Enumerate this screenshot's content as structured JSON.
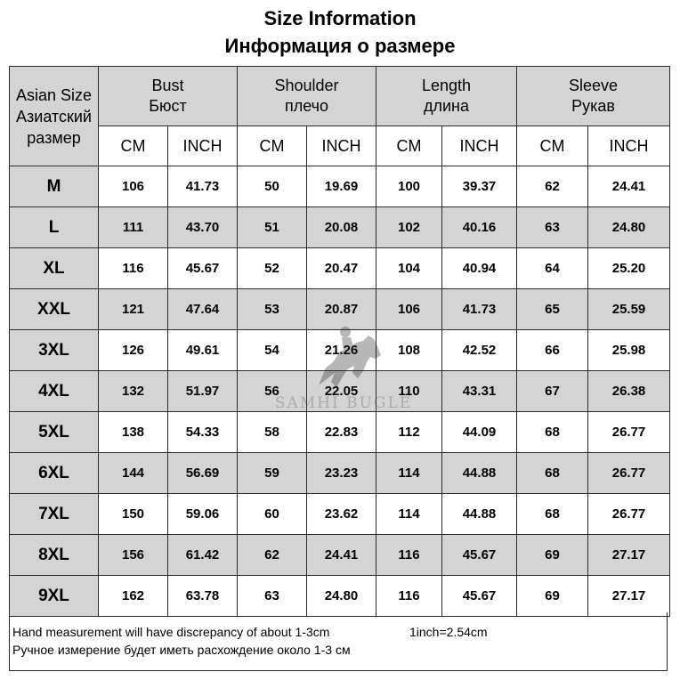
{
  "title": {
    "en": "Size Information",
    "ru": "Информация о размере"
  },
  "table": {
    "size_header": [
      "Asian Size",
      "Азиатский",
      "размер"
    ],
    "groups": [
      {
        "en": "Bust",
        "ru": "Бюст"
      },
      {
        "en": "Shoulder",
        "ru": "плечо"
      },
      {
        "en": "Length",
        "ru": "длина"
      },
      {
        "en": "Sleeve",
        "ru": "Рукав"
      }
    ],
    "units": [
      "CM",
      "INCH",
      "CM",
      "INCH",
      "CM",
      "INCH",
      "CM",
      "INCH"
    ],
    "rows": [
      {
        "size": "M",
        "values": [
          "106",
          "41.73",
          "50",
          "19.69",
          "100",
          "39.37",
          "62",
          "24.41"
        ]
      },
      {
        "size": "L",
        "values": [
          "111",
          "43.70",
          "51",
          "20.08",
          "102",
          "40.16",
          "63",
          "24.80"
        ]
      },
      {
        "size": "XL",
        "values": [
          "116",
          "45.67",
          "52",
          "20.47",
          "104",
          "40.94",
          "64",
          "25.20"
        ]
      },
      {
        "size": "XXL",
        "values": [
          "121",
          "47.64",
          "53",
          "20.87",
          "106",
          "41.73",
          "65",
          "25.59"
        ]
      },
      {
        "size": "3XL",
        "values": [
          "126",
          "49.61",
          "54",
          "21.26",
          "108",
          "42.52",
          "66",
          "25.98"
        ]
      },
      {
        "size": "4XL",
        "values": [
          "132",
          "51.97",
          "56",
          "22.05",
          "110",
          "43.31",
          "67",
          "26.38"
        ]
      },
      {
        "size": "5XL",
        "values": [
          "138",
          "54.33",
          "58",
          "22.83",
          "112",
          "44.09",
          "68",
          "26.77"
        ]
      },
      {
        "size": "6XL",
        "values": [
          "144",
          "56.69",
          "59",
          "23.23",
          "114",
          "44.88",
          "68",
          "26.77"
        ]
      },
      {
        "size": "7XL",
        "values": [
          "150",
          "59.06",
          "60",
          "23.62",
          "114",
          "44.88",
          "68",
          "26.77"
        ]
      },
      {
        "size": "8XL",
        "values": [
          "156",
          "61.42",
          "62",
          "24.41",
          "116",
          "45.67",
          "69",
          "27.17"
        ]
      },
      {
        "size": "9XL",
        "values": [
          "162",
          "63.78",
          "63",
          "24.80",
          "116",
          "45.67",
          "69",
          "27.17"
        ]
      }
    ]
  },
  "notes": {
    "en": "Hand measurement will have discrepancy of about 1-3cm",
    "conversion": "1inch=2.54cm",
    "ru": "Ручное измерение будет иметь расхождение около 1-3 см"
  },
  "watermark": {
    "text": "SAMHI BUGLE",
    "icon": "horse-rider-logo-icon"
  },
  "colors": {
    "header_bg": "#d4d4d4",
    "border": "#2b2b2b"
  }
}
